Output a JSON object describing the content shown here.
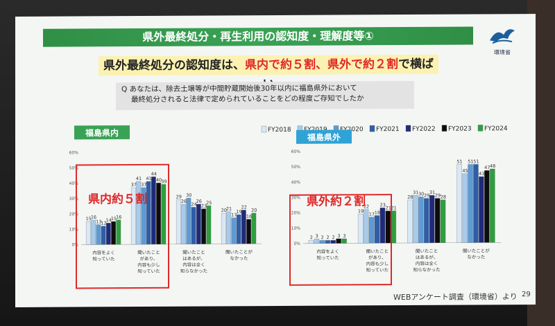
{
  "slide": {
    "title": "県外最終処分・再生利用の認知度・理解度等①",
    "logo_text": "環境省",
    "headline_a": "県外最終処分の認知度は、",
    "headline_b": "県内で約５割、県外で約２割",
    "headline_c": "で横ばい",
    "question_line1": "Q  あなたは、除去土壌等が中間貯蔵開始後30年以内に福島県外において",
    "question_line2": "最終処分されると法律で定められていることをどの程度ご存知でしたか",
    "callout_left": "県内約５割",
    "callout_right": "県外約２割",
    "source": "WEBアンケート調査（環境省）より",
    "page_number": "29"
  },
  "colors": {
    "FY2018": "#d9e8f6",
    "FY2019": "#a9cbeb",
    "FY2020": "#5c9bd5",
    "FY2021": "#2e5ea8",
    "FY2022": "#1f2b7a",
    "FY2023": "#0d0d0d",
    "FY2024": "#2e9e3e",
    "highlight": "#e02828",
    "banner": "#3aa255"
  },
  "chart_data": [
    {
      "type": "bar",
      "title": "福島県内",
      "ylim": [
        0,
        60
      ],
      "yticks": [
        "0%",
        "10%",
        "20%",
        "30%",
        "40%",
        "50%",
        "60%"
      ],
      "categories": [
        "内容をよく\n知っていた",
        "聞いたこと\nがあり、\n内容も少し\n知っていた",
        "聞いたこと\nはあるが、\n内容は全く\n知らなかった",
        "聞いたことが\nなかった"
      ],
      "series": [
        {
          "name": "FY2018",
          "values": [
            15,
            37,
            29,
            20
          ]
        },
        {
          "name": "FY2019",
          "values": [
            16,
            41,
            26,
            21
          ]
        },
        {
          "name": "FY2020",
          "values": [
            13,
            37,
            30,
            17
          ]
        },
        {
          "name": "FY2021",
          "values": [
            12,
            41,
            24,
            19
          ]
        },
        {
          "name": "FY2022",
          "values": [
            14,
            44,
            26,
            22
          ]
        },
        {
          "name": "FY2023",
          "values": [
            15,
            40,
            23,
            16
          ]
        },
        {
          "name": "FY2024",
          "values": [
            16,
            39,
            25,
            20
          ]
        }
      ]
    },
    {
      "type": "bar",
      "title": "福島県外",
      "ylim": [
        0,
        60
      ],
      "yticks": [
        "0%",
        "10%",
        "20%",
        "30%",
        "40%",
        "50%",
        "60%"
      ],
      "categories": [
        "内容をよく\n知っていた",
        "聞いたこと\nがあり、\n内容も少し\n知っていた",
        "聞いたこと\nはあるが、\n内容は全く\n知らなかった",
        "聞いたことが\nなかった"
      ],
      "series": [
        {
          "name": "FY2018",
          "values": [
            2,
            19,
            28,
            51
          ]
        },
        {
          "name": "FY2019",
          "values": [
            3,
            22,
            31,
            45
          ]
        },
        {
          "name": "FY2020",
          "values": [
            2,
            17,
            30,
            51
          ]
        },
        {
          "name": "FY2021",
          "values": [
            2,
            18,
            29,
            51
          ]
        },
        {
          "name": "FY2022",
          "values": [
            2,
            23,
            31,
            43
          ]
        },
        {
          "name": "FY2023",
          "values": [
            3,
            21,
            29,
            47
          ]
        },
        {
          "name": "FY2024",
          "values": [
            3,
            21,
            28,
            48
          ]
        }
      ]
    }
  ]
}
